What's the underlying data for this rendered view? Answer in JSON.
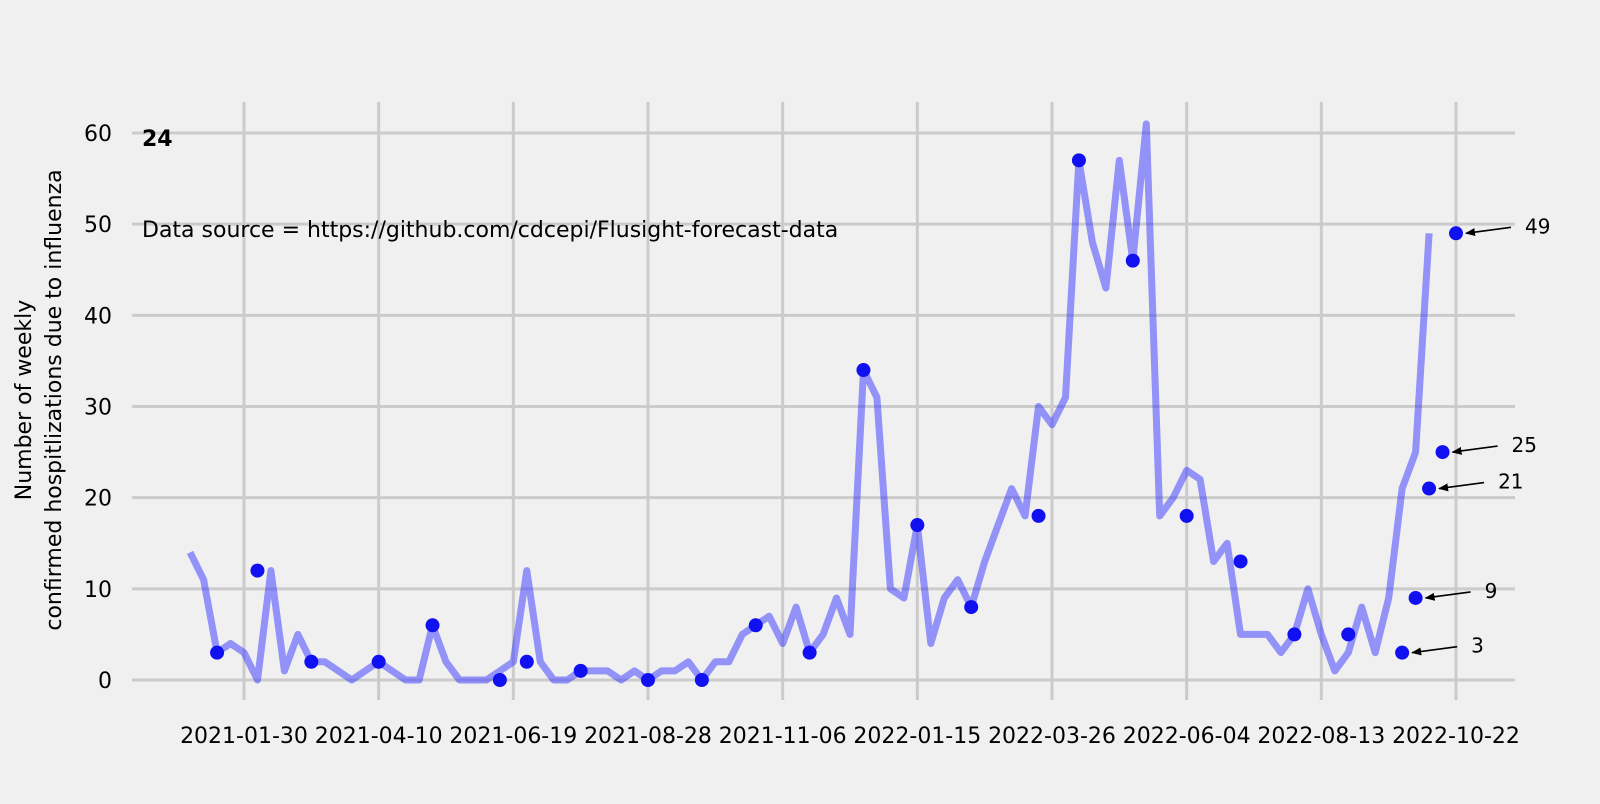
{
  "chart_data": {
    "type": "line",
    "ylabel": "Number of weekly\nconfirmed hospitlizations due to influenza",
    "xlabel": "",
    "ylim": [
      -2,
      63
    ],
    "yticks": [
      0,
      10,
      20,
      30,
      40,
      50,
      60
    ],
    "xticks": [
      "2021-01-30",
      "2021-04-10",
      "2021-06-19",
      "2021-08-28",
      "2021-11-06",
      "2022-01-15",
      "2022-03-26",
      "2022-06-04",
      "2022-08-13",
      "2022-10-22"
    ],
    "grid": true,
    "x_start": "2021-01-02",
    "x_step_days": 7,
    "series": [
      {
        "color": "#3333ff",
        "values": [
          14,
          11,
          3,
          4,
          3,
          0,
          12,
          1,
          5,
          2,
          2,
          1,
          0,
          1,
          2,
          1,
          0,
          0,
          6,
          2,
          0,
          0,
          0,
          1,
          2,
          12,
          2,
          0,
          0,
          1,
          1,
          1,
          0,
          1,
          0,
          1,
          1,
          2,
          0,
          2,
          2,
          5,
          6,
          7,
          4,
          8,
          3,
          5,
          9,
          5,
          34,
          31,
          10,
          9,
          17,
          4,
          9,
          11,
          8,
          13,
          17,
          21,
          18,
          30,
          28,
          31,
          57,
          48,
          43,
          57,
          46,
          61,
          18,
          20,
          23,
          22,
          13,
          15,
          5,
          5,
          5,
          3,
          5,
          10,
          5,
          1,
          3,
          8,
          3,
          9,
          21,
          25,
          49
        ]
      }
    ],
    "marked_points": [
      {
        "date": "2021-01-16",
        "value": 3
      },
      {
        "date": "2021-02-06",
        "value": 12
      },
      {
        "date": "2021-03-06",
        "value": 2
      },
      {
        "date": "2021-04-10",
        "value": 2
      },
      {
        "date": "2021-05-08",
        "value": 6
      },
      {
        "date": "2021-06-12",
        "value": 0
      },
      {
        "date": "2021-06-26",
        "value": 2
      },
      {
        "date": "2021-07-24",
        "value": 1
      },
      {
        "date": "2021-08-28",
        "value": 0
      },
      {
        "date": "2021-09-25",
        "value": 0
      },
      {
        "date": "2021-10-23",
        "value": 6
      },
      {
        "date": "2021-11-20",
        "value": 3
      },
      {
        "date": "2021-12-18",
        "value": 34
      },
      {
        "date": "2022-01-15",
        "value": 17
      },
      {
        "date": "2022-02-12",
        "value": 8
      },
      {
        "date": "2022-03-19",
        "value": 18
      },
      {
        "date": "2022-04-09",
        "value": 57
      },
      {
        "date": "2022-05-07",
        "value": 46
      },
      {
        "date": "2022-06-04",
        "value": 18
      },
      {
        "date": "2022-07-02",
        "value": 13
      },
      {
        "date": "2022-07-30",
        "value": 5
      },
      {
        "date": "2022-08-27",
        "value": 5
      },
      {
        "date": "2022-09-24",
        "value": 3
      },
      {
        "date": "2022-10-01",
        "value": 9
      },
      {
        "date": "2022-10-08",
        "value": 21
      },
      {
        "date": "2022-10-15",
        "value": 25
      },
      {
        "date": "2022-10-22",
        "value": 49
      }
    ],
    "annotations": [
      {
        "text": "49",
        "date": "2022-10-22",
        "value": 49
      },
      {
        "text": "25",
        "date": "2022-10-15",
        "value": 25
      },
      {
        "text": "21",
        "date": "2022-10-08",
        "value": 21
      },
      {
        "text": "9",
        "date": "2022-10-01",
        "value": 9
      },
      {
        "text": "3",
        "date": "2022-09-24",
        "value": 3
      }
    ],
    "title": "24",
    "source_note": "Data source = https://github.com/cdcepi/Flusight-forecast-data",
    "line_color": "#3333ff",
    "marker_color": "#1010f0",
    "grid_color": "#cbcbcb",
    "background": "#f0f0f0"
  }
}
